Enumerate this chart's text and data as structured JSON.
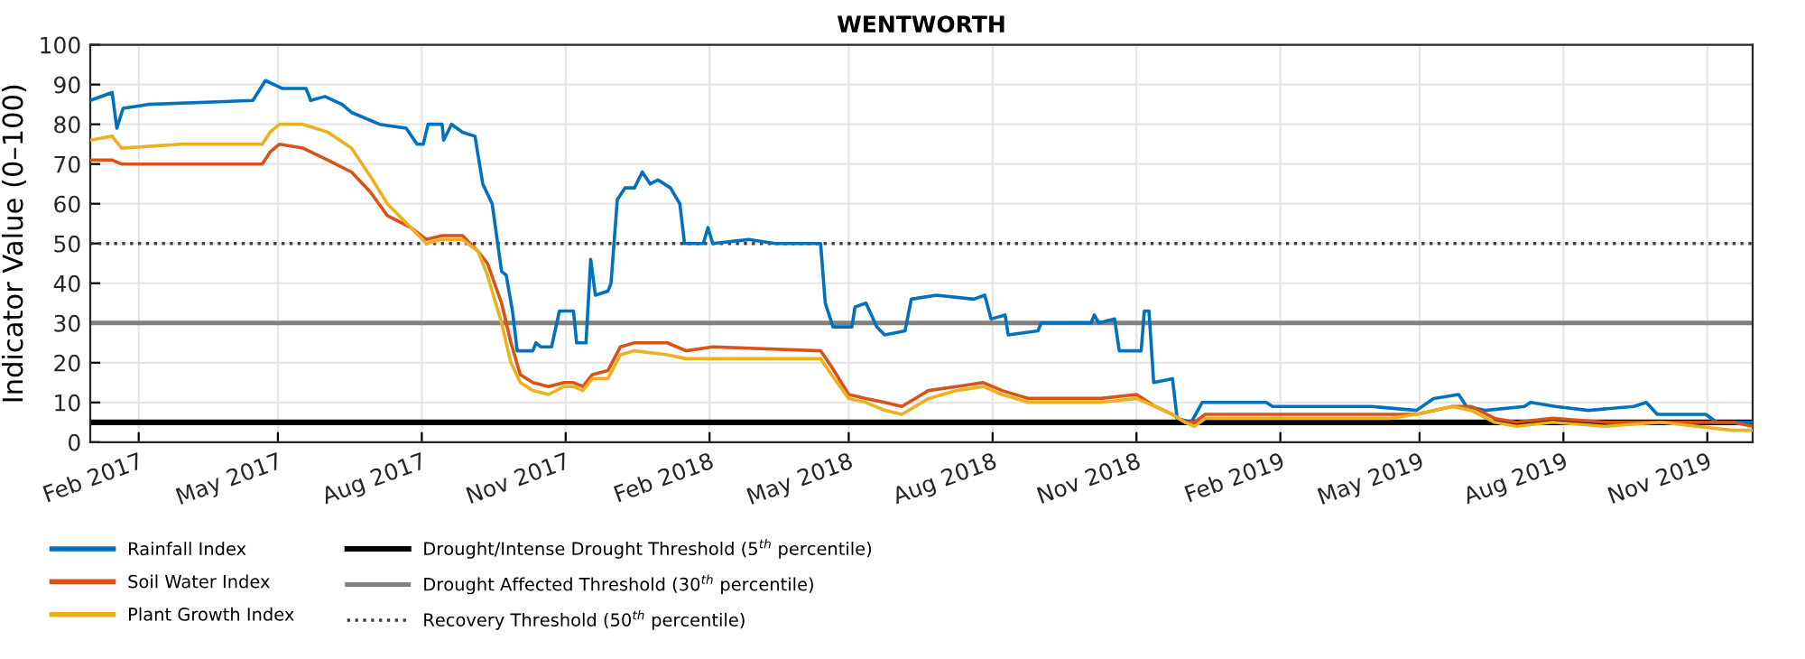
{
  "chart_data": {
    "type": "line",
    "title": "WENTWORTH",
    "ylabel": "Indicator Value (0–100)",
    "xlim": [
      "2017-01-01",
      "2019-11-30"
    ],
    "ylim": [
      0,
      100
    ],
    "xticks": [
      {
        "value": "2017-02-01",
        "label": "Feb 2017"
      },
      {
        "value": "2017-05-01",
        "label": "May 2017"
      },
      {
        "value": "2017-08-01",
        "label": "Aug 2017"
      },
      {
        "value": "2017-11-01",
        "label": "Nov 2017"
      },
      {
        "value": "2018-02-01",
        "label": "Feb 2018"
      },
      {
        "value": "2018-05-01",
        "label": "May 2018"
      },
      {
        "value": "2018-08-01",
        "label": "Aug 2018"
      },
      {
        "value": "2018-11-01",
        "label": "Nov 2018"
      },
      {
        "value": "2019-02-01",
        "label": "Feb 2019"
      },
      {
        "value": "2019-05-01",
        "label": "May 2019"
      },
      {
        "value": "2019-08-01",
        "label": "Aug 2019"
      },
      {
        "value": "2019-11-01",
        "label": "Nov 2019"
      }
    ],
    "yticks": [
      0,
      10,
      20,
      30,
      40,
      50,
      60,
      70,
      80,
      90,
      100
    ],
    "grid": true,
    "legend": "bottom left",
    "marker": "none",
    "line_style": "solid",
    "series": [
      {
        "name": "Rainfall Index",
        "color": "#0072bd",
        "x": [
          "2017-01-01",
          "2017-01-15",
          "2017-01-18",
          "2017-01-22",
          "2017-02-07",
          "2017-04-15",
          "2017-04-23",
          "2017-05-04",
          "2017-05-19",
          "2017-05-22",
          "2017-05-31",
          "2017-06-11",
          "2017-06-17",
          "2017-07-05",
          "2017-07-22",
          "2017-07-29",
          "2017-08-02",
          "2017-08-05",
          "2017-08-14",
          "2017-08-15",
          "2017-08-20",
          "2017-08-27",
          "2017-09-04",
          "2017-09-09",
          "2017-09-15",
          "2017-09-21",
          "2017-09-24",
          "2017-09-28",
          "2017-10-01",
          "2017-10-11",
          "2017-10-13",
          "2017-10-16",
          "2017-10-23",
          "2017-10-28",
          "2017-11-06",
          "2017-11-08",
          "2017-11-14",
          "2017-11-17",
          "2017-11-20",
          "2017-11-28",
          "2017-11-30",
          "2017-12-04",
          "2017-12-09",
          "2017-12-15",
          "2017-12-20",
          "2017-12-25",
          "2017-12-30",
          "2018-01-07",
          "2018-01-13",
          "2018-01-16",
          "2018-01-28",
          "2018-01-31",
          "2018-02-03",
          "2018-02-26",
          "2018-03-15",
          "2018-04-13",
          "2018-04-16",
          "2018-04-21",
          "2018-05-03",
          "2018-05-05",
          "2018-05-12",
          "2018-05-19",
          "2018-05-24",
          "2018-06-06",
          "2018-06-10",
          "2018-06-26",
          "2018-07-20",
          "2018-07-27",
          "2018-07-31",
          "2018-08-09",
          "2018-08-11",
          "2018-08-30",
          "2018-09-01",
          "2018-10-03",
          "2018-10-05",
          "2018-10-08",
          "2018-10-18",
          "2018-10-21",
          "2018-11-04",
          "2018-11-06",
          "2018-11-09",
          "2018-11-12",
          "2018-11-24",
          "2018-11-27",
          "2018-12-06",
          "2018-12-13",
          "2019-01-23",
          "2019-01-27",
          "2019-03-31",
          "2019-04-29",
          "2019-05-10",
          "2019-05-26",
          "2019-05-31",
          "2019-06-12",
          "2019-07-07",
          "2019-07-11",
          "2019-07-27",
          "2019-08-17",
          "2019-09-15",
          "2019-09-23",
          "2019-09-30",
          "2019-10-31",
          "2019-11-07",
          "2019-11-30"
        ],
        "values": [
          86,
          88,
          79,
          84,
          85,
          86,
          91,
          89,
          89,
          86,
          87,
          85,
          83,
          80,
          79,
          75,
          75,
          80,
          80,
          76,
          80,
          78,
          77,
          65,
          60,
          43,
          42,
          33,
          23,
          23,
          25,
          24,
          24,
          33,
          33,
          25,
          25,
          46,
          37,
          38,
          40,
          61,
          64,
          64,
          68,
          65,
          66,
          64,
          60,
          50,
          50,
          54,
          50,
          51,
          50,
          50,
          35,
          29,
          29,
          34,
          35,
          29,
          27,
          28,
          36,
          37,
          36,
          37,
          31,
          32,
          27,
          28,
          30,
          30,
          32,
          30,
          31,
          23,
          23,
          33,
          33,
          15,
          16,
          6,
          5,
          10,
          10,
          9,
          9,
          8,
          11,
          12,
          9,
          8,
          9,
          10,
          9,
          8,
          9,
          10,
          7,
          7,
          5,
          5
        ]
      },
      {
        "name": "Soil Water Index",
        "color": "#d95319",
        "x": [
          "2017-01-01",
          "2017-01-15",
          "2017-01-21",
          "2017-02-28",
          "2017-04-21",
          "2017-04-26",
          "2017-05-02",
          "2017-05-17",
          "2017-06-02",
          "2017-06-17",
          "2017-06-29",
          "2017-07-10",
          "2017-07-25",
          "2017-08-04",
          "2017-08-14",
          "2017-08-27",
          "2017-09-06",
          "2017-09-12",
          "2017-09-21",
          "2017-09-27",
          "2017-10-03",
          "2017-10-11",
          "2017-10-21",
          "2017-10-31",
          "2017-11-06",
          "2017-11-12",
          "2017-11-18",
          "2017-11-28",
          "2017-12-06",
          "2017-12-15",
          "2018-01-05",
          "2018-01-17",
          "2018-02-03",
          "2018-04-13",
          "2018-04-20",
          "2018-05-01",
          "2018-05-12",
          "2018-05-24",
          "2018-06-04",
          "2018-06-21",
          "2018-07-09",
          "2018-07-26",
          "2018-08-07",
          "2018-08-24",
          "2018-10-09",
          "2018-11-01",
          "2018-11-13",
          "2018-11-24",
          "2018-12-02",
          "2018-12-08",
          "2018-12-15",
          "2019-01-21",
          "2019-04-12",
          "2019-04-29",
          "2019-05-22",
          "2019-06-03",
          "2019-06-18",
          "2019-07-02",
          "2019-07-25",
          "2019-08-28",
          "2019-10-02",
          "2019-11-17",
          "2019-11-30"
        ],
        "values": [
          71,
          71,
          70,
          70,
          70,
          73,
          75,
          74,
          71,
          68,
          63,
          57,
          54,
          51,
          52,
          52,
          48,
          45,
          35,
          25,
          17,
          15,
          14,
          15,
          15,
          14,
          17,
          18,
          24,
          25,
          25,
          23,
          24,
          23,
          19,
          12,
          11,
          10,
          9,
          13,
          14,
          15,
          13,
          11,
          11,
          12,
          9,
          7,
          5,
          5,
          7,
          7,
          7,
          7,
          9,
          9,
          6,
          5,
          6,
          5,
          5,
          5,
          4
        ]
      },
      {
        "name": "Plant Growth Index",
        "color": "#edb120",
        "x": [
          "2017-01-01",
          "2017-01-15",
          "2017-01-21",
          "2017-02-28",
          "2017-04-21",
          "2017-04-26",
          "2017-05-02",
          "2017-05-17",
          "2017-06-02",
          "2017-06-17",
          "2017-06-29",
          "2017-07-10",
          "2017-07-25",
          "2017-08-04",
          "2017-08-14",
          "2017-08-27",
          "2017-09-06",
          "2017-09-12",
          "2017-09-21",
          "2017-09-27",
          "2017-10-03",
          "2017-10-11",
          "2017-10-21",
          "2017-10-31",
          "2017-11-06",
          "2017-11-12",
          "2017-11-18",
          "2017-11-28",
          "2017-12-06",
          "2017-12-15",
          "2018-01-05",
          "2018-01-17",
          "2018-02-03",
          "2018-04-13",
          "2018-04-20",
          "2018-05-01",
          "2018-05-12",
          "2018-05-24",
          "2018-06-04",
          "2018-06-21",
          "2018-07-09",
          "2018-07-26",
          "2018-08-07",
          "2018-08-24",
          "2018-10-09",
          "2018-11-01",
          "2018-11-13",
          "2018-11-24",
          "2018-12-02",
          "2018-12-08",
          "2018-12-15",
          "2019-01-21",
          "2019-04-12",
          "2019-04-29",
          "2019-05-22",
          "2019-06-03",
          "2019-06-18",
          "2019-07-02",
          "2019-07-25",
          "2019-08-28",
          "2019-10-02",
          "2019-11-17",
          "2019-11-30"
        ],
        "values": [
          76,
          77,
          74,
          75,
          75,
          78,
          80,
          80,
          78,
          74,
          67,
          60,
          54,
          50,
          51,
          51,
          48,
          42,
          30,
          20,
          15,
          13,
          12,
          14,
          14,
          13,
          16,
          16,
          22,
          23,
          22,
          21,
          21,
          21,
          17,
          11,
          10,
          8,
          7,
          11,
          13,
          14,
          12,
          10,
          10,
          11,
          9,
          7,
          5,
          4,
          6,
          6,
          6,
          7,
          9,
          8,
          5,
          4,
          5,
          4,
          5,
          3,
          3
        ]
      }
    ],
    "ref_lines": [
      {
        "axis": "y",
        "value": 5,
        "label": "Drought/Intense Drought Threshold (5$^{th}$ percentile)",
        "color": "#000000",
        "line_style": "solid"
      },
      {
        "axis": "y",
        "value": 30,
        "label": "Drought Affected Threshold (30$^{th}$ percentile)",
        "color": "#808080",
        "line_style": "solid"
      },
      {
        "axis": "y",
        "value": 50,
        "label": "Recovery Threshold (50$^{th}$ percentile)",
        "color": "#404040",
        "line_style": "dotted"
      }
    ]
  }
}
